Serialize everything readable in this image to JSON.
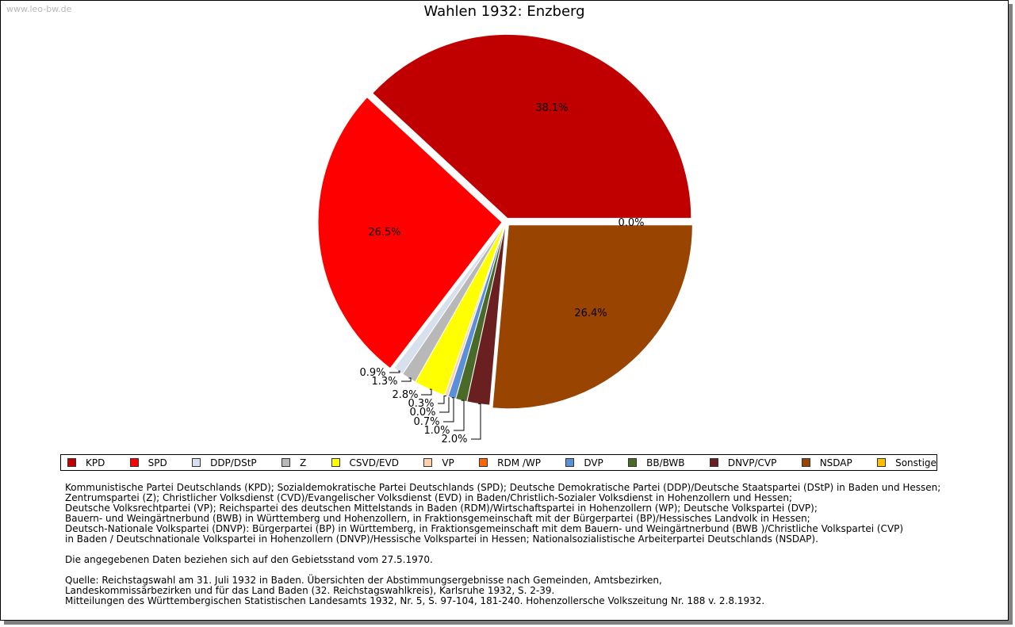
{
  "watermark": "www.leo-bw.de",
  "chart_data": {
    "type": "pie",
    "title": "Wahlen 1932: Enzberg",
    "slices": [
      {
        "name": "KPD",
        "value": 38.1,
        "label": "38.1%",
        "color": "#c00000",
        "explode": true
      },
      {
        "name": "SPD",
        "value": 26.5,
        "label": "26.5%",
        "color": "#ff0000",
        "explode": true
      },
      {
        "name": "DDP/DStP",
        "value": 0.9,
        "label": "0.9%",
        "color": "#d8e0ee",
        "explode": false
      },
      {
        "name": "Z",
        "value": 1.3,
        "label": "1.3%",
        "color": "#b8b8b8",
        "explode": false
      },
      {
        "name": "CSVD/EVD",
        "value": 2.8,
        "label": "2.8%",
        "color": "#ffff00",
        "explode": false
      },
      {
        "name": "VP",
        "value": 0.3,
        "label": "0.3%",
        "color": "#ffd0b0",
        "explode": false
      },
      {
        "name": "RDM /WP",
        "value": 0.0,
        "label": "0.0%",
        "color": "#ff6600",
        "explode": false
      },
      {
        "name": "DVP",
        "value": 0.7,
        "label": "0.7%",
        "color": "#5b8fd8",
        "explode": false
      },
      {
        "name": "BB/BWB",
        "value": 1.0,
        "label": "1.0%",
        "color": "#4a6a2a",
        "explode": false
      },
      {
        "name": "DNVP/CVP",
        "value": 2.0,
        "label": "2.0%",
        "color": "#6a2020",
        "explode": false
      },
      {
        "name": "NSDAP",
        "value": 26.4,
        "label": "26.4%",
        "color": "#994400",
        "explode": true
      },
      {
        "name": "Sonstige",
        "value": 0.0,
        "label": "0.0%",
        "color": "#ffc000",
        "explode": true
      }
    ],
    "legend_position": "bottom"
  },
  "notes": [
    "Kommunistische Partei Deutschlands (KPD); Sozialdemokratische Partei Deutschlands (SPD); Deutsche Demokratische Partei (DDP)/Deutsche Staatspartei (DStP) in Baden und Hessen;",
    "Zentrumspartei (Z); Christlicher Volksdienst (CVD)/Evangelischer Volksdienst (EVD) in Baden/Christlich-Sozialer Volksdienst in Hohenzollern und Hessen;",
    "Deutsche Volksrechtpartei (VP); Reichspartei des deutschen Mittelstands in Baden (RDM)/Wirtschaftspartei in Hohenzollern (WP); Deutsche Volkspartei (DVP);",
    "Bauern- und Weingärtnerbund (BWB) in Württemberg und Hohenzollern, in Fraktionsgemeinschaft mit der Bürgerpartei (BP)/Hessisches Landvolk in Hessen;",
    "Deutsch-Nationale Volkspartei (DNVP): Bürgerpartei (BP) in Württemberg, in Fraktionsgemeinschaft mit dem Bauern- und Weingärtnerbund (BWB )/Christliche Volkspartei (CVP)",
    "in Baden / Deutschnationale Volkspartei in Hohenzollern (DNVP)/Hessische Volkspartei in Hessen; Nationalsozialistische Arbeiterpartei Deutschlands (NSDAP).",
    "",
    "Die angegebenen Daten beziehen sich auf den Gebietsstand vom 27.5.1970.",
    "",
    "Quelle: Reichstagswahl am 31. Juli 1932 in Baden. Übersichten der Abstimmungsergebnisse nach Gemeinden, Amtsbezirken,",
    "Landeskommissärbezirken und für das Land Baden (32. Reichstagswahlkreis), Karlsruhe 1932, S. 2-39.",
    "Mitteilungen des Württembergischen Statistischen Landesamts 1932, Nr. 5, S. 97-104, 181-240. Hohenzollersche Volkszeitung Nr. 188 v. 2.8.1932."
  ]
}
